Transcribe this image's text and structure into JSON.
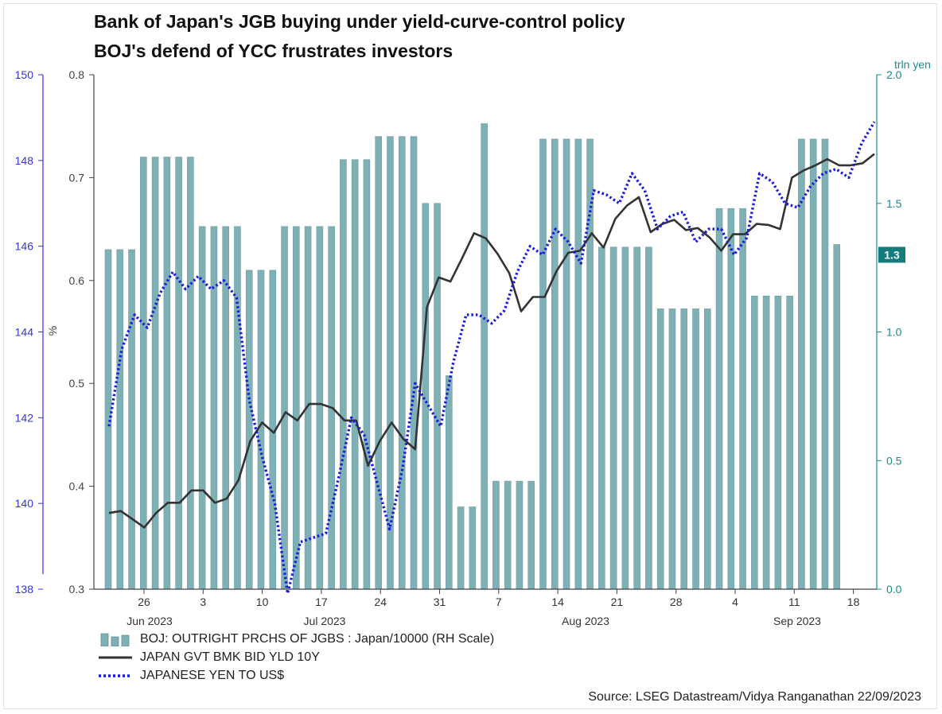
{
  "titles": {
    "line1": "Bank of Japan's JGB buying under yield-curve-control policy",
    "line2": "BOJ's defend of YCC frustrates investors"
  },
  "source": "Source: LSEG Datastream/Vidya Ranganathan 22/09/2023",
  "colors": {
    "bars": "#7fb0b5",
    "yield_line": "#333333",
    "yen_line": "#1a1adb",
    "left_axis": "#3333dd",
    "right_axis": "#1a8c8c",
    "mid_axis": "#444444"
  },
  "chart_data": {
    "type": "bar",
    "x_tick_labels": [
      "26",
      "3",
      "10",
      "17",
      "24",
      "31",
      "7",
      "14",
      "21",
      "28",
      "4",
      "11",
      "18"
    ],
    "month_labels": [
      "Jun 2023",
      "Jul 2023",
      "Aug 2023",
      "Sep 2023"
    ],
    "axes": {
      "left": {
        "label": "",
        "range": [
          138,
          150
        ],
        "ticks": [
          "138",
          "140",
          "142",
          "144",
          "146",
          "148",
          "150"
        ]
      },
      "mid": {
        "label": "%",
        "range": [
          0.3,
          0.8
        ],
        "ticks": [
          "0.3",
          "0.4",
          "0.5",
          "0.6",
          "0.7",
          "0.8"
        ]
      },
      "right": {
        "label": "trln yen",
        "range": [
          0.0,
          2.0
        ],
        "ticks": [
          "0.0",
          "0.5",
          "1.0",
          "1.5",
          "2.0"
        ],
        "last_value_badge": "1.3"
      }
    },
    "series": [
      {
        "name": "BOJ: OUTRIGHT PRCHS OF JGBS : Japan/10000 (RH Scale)",
        "type": "bar",
        "axis": "right",
        "values": [
          1.32,
          1.32,
          1.32,
          1.68,
          1.68,
          1.68,
          1.68,
          1.68,
          1.41,
          1.41,
          1.41,
          1.41,
          1.24,
          1.24,
          1.24,
          1.41,
          1.41,
          1.41,
          1.41,
          1.41,
          1.67,
          1.67,
          1.67,
          1.76,
          1.76,
          1.76,
          1.76,
          1.5,
          1.5,
          0.83,
          0.32,
          0.32,
          1.81,
          0.42,
          0.42,
          0.42,
          0.42,
          1.75,
          1.75,
          1.75,
          1.75,
          1.75,
          1.33,
          1.33,
          1.33,
          1.33,
          1.33,
          1.09,
          1.09,
          1.09,
          1.09,
          1.09,
          1.48,
          1.48,
          1.48,
          1.14,
          1.14,
          1.14,
          1.14,
          1.75,
          1.75,
          1.75,
          1.34
        ]
      },
      {
        "name": "JAPAN GVT BMK BID YLD 10Y",
        "type": "line",
        "axis": "mid",
        "values": [
          0.374,
          0.376,
          0.368,
          0.36,
          0.374,
          0.384,
          0.384,
          0.396,
          0.396,
          0.384,
          0.388,
          0.406,
          0.444,
          0.462,
          0.452,
          0.472,
          0.464,
          0.48,
          0.48,
          0.476,
          0.464,
          0.464,
          0.42,
          0.444,
          0.462,
          0.446,
          0.436,
          0.574,
          0.603,
          0.599,
          0.622,
          0.646,
          0.641,
          0.626,
          0.607,
          0.57,
          0.584,
          0.584,
          0.609,
          0.627,
          0.629,
          0.646,
          0.632,
          0.66,
          0.673,
          0.681,
          0.647,
          0.655,
          0.659,
          0.649,
          0.651,
          0.642,
          0.629,
          0.645,
          0.645,
          0.655,
          0.654,
          0.65,
          0.7,
          0.707,
          0.712,
          0.718,
          0.712,
          0.712,
          0.714,
          0.723
        ]
      },
      {
        "name": "JAPANESE YEN TO US$",
        "type": "line",
        "axis": "left",
        "style": "dotted",
        "values": [
          141.8,
          143.6,
          144.4,
          144.1,
          144.9,
          145.4,
          145.0,
          145.3,
          145.0,
          145.2,
          144.8,
          142.4,
          141.1,
          140.0,
          137.9,
          139.1,
          139.2,
          139.3,
          140.6,
          142.0,
          141.6,
          140.5,
          139.4,
          140.8,
          142.8,
          142.3,
          141.8,
          143.3,
          144.4,
          144.4,
          144.2,
          144.5,
          145.4,
          146.0,
          145.8,
          146.4,
          146.1,
          145.6,
          147.3,
          147.2,
          147.0,
          147.7,
          147.3,
          146.4,
          146.7,
          146.8,
          146.1,
          146.4,
          146.4,
          145.8,
          146.2,
          147.7,
          147.5,
          147.0,
          146.9,
          147.4,
          147.7,
          147.8,
          147.6,
          148.4,
          148.9
        ]
      }
    ],
    "legend": [
      "BOJ: OUTRIGHT PRCHS OF JGBS : Japan/10000 (RH Scale)",
      "JAPAN GVT BMK BID YLD 10Y",
      "JAPANESE YEN TO US$"
    ]
  }
}
